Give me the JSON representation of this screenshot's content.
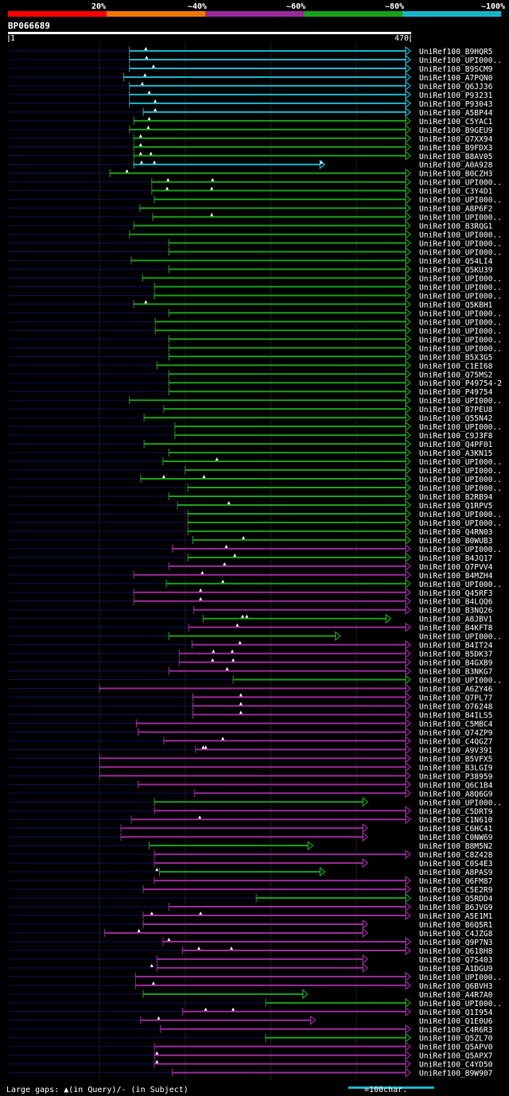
{
  "chart_data": {
    "type": "alignment-map",
    "title": "BP066689",
    "query_range": [
      1,
      470
    ],
    "query_start_label": "1",
    "query_end_label": "470",
    "identity_legend": [
      {
        "label": "20%",
        "color": "#ff0000"
      },
      {
        "label": "~40%",
        "color": "#f07800"
      },
      {
        "label": "~60%",
        "color": "#9a2a9a"
      },
      {
        "label": "~80%",
        "color": "#19a019"
      },
      {
        "label": "~100%",
        "color": "#19b4c8"
      }
    ],
    "footer_left": "Large gaps: ▲(in Query)/- (in Subject)",
    "footer_right": "=100char.",
    "scale_bar_chars": 100,
    "colors": {
      "cyan": "#19b4c8",
      "green": "#19a019",
      "purple": "#9a2a9a",
      "navy": "#0a1450",
      "grid": "#1e1e1e"
    },
    "hits": [
      {
        "name": "UniRef100_B9HQR5",
        "start": 142,
        "end": 470,
        "color": "cyan",
        "gaps": [
          161
        ]
      },
      {
        "name": "UniRef100_UPI000..",
        "start": 142,
        "end": 470,
        "color": "cyan",
        "gaps": [
          162
        ]
      },
      {
        "name": "UniRef100_B9SCM9",
        "start": 142,
        "end": 470,
        "color": "cyan",
        "gaps": [
          170
        ]
      },
      {
        "name": "UniRef100_A7PQN0",
        "start": 135,
        "end": 470,
        "color": "cyan",
        "gaps": [
          160
        ]
      },
      {
        "name": "UniRef100_Q6JJ36",
        "start": 142,
        "end": 470,
        "color": "cyan",
        "gaps": [
          157
        ]
      },
      {
        "name": "UniRef100_P93231",
        "start": 142,
        "end": 470,
        "color": "cyan",
        "gaps": [
          165
        ]
      },
      {
        "name": "UniRef100_P93043",
        "start": 142,
        "end": 470,
        "color": "cyan",
        "gaps": [
          172
        ]
      },
      {
        "name": "UniRef100_A5BP44",
        "start": 158,
        "end": 470,
        "color": "cyan",
        "gaps": [
          172
        ]
      },
      {
        "name": "UniRef100_C5YAC1",
        "start": 147,
        "end": 470,
        "color": "green",
        "gaps": [
          165
        ]
      },
      {
        "name": "UniRef100_B9GEU9",
        "start": 142,
        "end": 470,
        "color": "green",
        "gaps": [
          164
        ]
      },
      {
        "name": "UniRef100_Q7XX94",
        "start": 147,
        "end": 470,
        "color": "green",
        "gaps": [
          155
        ]
      },
      {
        "name": "UniRef100_B9FDX3",
        "start": 147,
        "end": 470,
        "color": "green",
        "gaps": [
          155
        ]
      },
      {
        "name": "UniRef100_B8AV05",
        "start": 147,
        "end": 470,
        "color": "green",
        "gaps": [
          155,
          167
        ]
      },
      {
        "name": "UniRef100_A0A928",
        "start": 147,
        "end": 370,
        "color": "cyan",
        "gaps": [
          156,
          171,
          366
        ]
      },
      {
        "name": "UniRef100_B0CZH3",
        "start": 119,
        "end": 470,
        "color": "green",
        "gaps": [
          139
        ]
      },
      {
        "name": "UniRef100_UPI000..",
        "start": 168,
        "end": 470,
        "color": "green",
        "gaps": [
          187,
          239
        ]
      },
      {
        "name": "UniRef100_C3Y4D1",
        "start": 168,
        "end": 470,
        "color": "green",
        "gaps": [
          186,
          238
        ]
      },
      {
        "name": "UniRef100_UPI000..",
        "start": 171,
        "end": 470,
        "color": "green",
        "gaps": []
      },
      {
        "name": "UniRef100_A8P6F2",
        "start": 154,
        "end": 470,
        "color": "green",
        "gaps": []
      },
      {
        "name": "UniRef100_UPI000..",
        "start": 169,
        "end": 470,
        "color": "green",
        "gaps": [
          238
        ]
      },
      {
        "name": "UniRef100_B3RQG1",
        "start": 147,
        "end": 470,
        "color": "green",
        "gaps": []
      },
      {
        "name": "UniRef100_UPI000..",
        "start": 142,
        "end": 470,
        "color": "green",
        "gaps": []
      },
      {
        "name": "UniRef100_UPI000..",
        "start": 188,
        "end": 470,
        "color": "green",
        "gaps": []
      },
      {
        "name": "UniRef100_UPI000..",
        "start": 188,
        "end": 470,
        "color": "green",
        "gaps": []
      },
      {
        "name": "UniRef100_Q54LI4",
        "start": 144,
        "end": 470,
        "color": "green",
        "gaps": []
      },
      {
        "name": "UniRef100_Q5KU39",
        "start": 188,
        "end": 470,
        "color": "green",
        "gaps": []
      },
      {
        "name": "UniRef100_UPI000..",
        "start": 157,
        "end": 470,
        "color": "green",
        "gaps": []
      },
      {
        "name": "UniRef100_UPI000..",
        "start": 171,
        "end": 470,
        "color": "green",
        "gaps": []
      },
      {
        "name": "UniRef100_UPI000..",
        "start": 171,
        "end": 470,
        "color": "green",
        "gaps": []
      },
      {
        "name": "UniRef100_Q5KBH1",
        "start": 147,
        "end": 470,
        "color": "green",
        "gaps": [
          161
        ]
      },
      {
        "name": "UniRef100_UPI000..",
        "start": 188,
        "end": 470,
        "color": "green",
        "gaps": []
      },
      {
        "name": "UniRef100_UPI000..",
        "start": 172,
        "end": 470,
        "color": "green",
        "gaps": []
      },
      {
        "name": "UniRef100_UPI000..",
        "start": 172,
        "end": 470,
        "color": "green",
        "gaps": []
      },
      {
        "name": "UniRef100_UPI000..",
        "start": 188,
        "end": 470,
        "color": "green",
        "gaps": []
      },
      {
        "name": "UniRef100_UPI000..",
        "start": 188,
        "end": 470,
        "color": "green",
        "gaps": []
      },
      {
        "name": "UniRef100_B5X3G5",
        "start": 188,
        "end": 470,
        "color": "green",
        "gaps": []
      },
      {
        "name": "UniRef100_C1EI68",
        "start": 174,
        "end": 470,
        "color": "green",
        "gaps": []
      },
      {
        "name": "UniRef100_Q75MS2",
        "start": 188,
        "end": 470,
        "color": "green",
        "gaps": []
      },
      {
        "name": "UniRef100_P49754-2",
        "start": 188,
        "end": 470,
        "color": "green",
        "gaps": []
      },
      {
        "name": "UniRef100_P49754",
        "start": 188,
        "end": 470,
        "color": "green",
        "gaps": []
      },
      {
        "name": "UniRef100_UPI000..",
        "start": 142,
        "end": 470,
        "color": "green",
        "gaps": []
      },
      {
        "name": "UniRef100_B7PEU8",
        "start": 182,
        "end": 470,
        "color": "green",
        "gaps": []
      },
      {
        "name": "UniRef100_Q55N42",
        "start": 159,
        "end": 470,
        "color": "green",
        "gaps": []
      },
      {
        "name": "UniRef100_UPI000..",
        "start": 195,
        "end": 470,
        "color": "green",
        "gaps": []
      },
      {
        "name": "UniRef100_C9J3F8",
        "start": 195,
        "end": 470,
        "color": "green",
        "gaps": []
      },
      {
        "name": "UniRef100_Q4PF01",
        "start": 159,
        "end": 470,
        "color": "green",
        "gaps": []
      },
      {
        "name": "UniRef100_A3KN15",
        "start": 188,
        "end": 470,
        "color": "green",
        "gaps": []
      },
      {
        "name": "UniRef100_UPI000..",
        "start": 181,
        "end": 470,
        "color": "green",
        "gaps": [
          244
        ]
      },
      {
        "name": "UniRef100_UPI000..",
        "start": 207,
        "end": 470,
        "color": "green",
        "gaps": []
      },
      {
        "name": "UniRef100_UPI000..",
        "start": 155,
        "end": 470,
        "color": "green",
        "gaps": [
          182,
          229
        ]
      },
      {
        "name": "UniRef100_UPI000..",
        "start": 210,
        "end": 470,
        "color": "green",
        "gaps": []
      },
      {
        "name": "UniRef100_B2RB94",
        "start": 188,
        "end": 470,
        "color": "green",
        "gaps": []
      },
      {
        "name": "UniRef100_Q1RPV5",
        "start": 198,
        "end": 470,
        "color": "green",
        "gaps": [
          258
        ]
      },
      {
        "name": "UniRef100_UPI000..",
        "start": 210,
        "end": 470,
        "color": "green",
        "gaps": []
      },
      {
        "name": "UniRef100_UPI000..",
        "start": 210,
        "end": 470,
        "color": "green",
        "gaps": []
      },
      {
        "name": "UniRef100_Q4RN03",
        "start": 210,
        "end": 470,
        "color": "green",
        "gaps": []
      },
      {
        "name": "UniRef100_B0WUB3",
        "start": 216,
        "end": 470,
        "color": "green",
        "gaps": [
          275
        ]
      },
      {
        "name": "UniRef100_UPI000..",
        "start": 192,
        "end": 470,
        "color": "purple",
        "gaps": [
          255
        ]
      },
      {
        "name": "UniRef100_B4JQ17",
        "start": 210,
        "end": 470,
        "color": "green",
        "gaps": [
          265
        ]
      },
      {
        "name": "UniRef100_Q7PVV4",
        "start": 188,
        "end": 470,
        "color": "purple",
        "gaps": [
          253
        ]
      },
      {
        "name": "UniRef100_B4MZH4",
        "start": 147,
        "end": 470,
        "color": "purple",
        "gaps": [
          227
        ]
      },
      {
        "name": "UniRef100_UPI000..",
        "start": 185,
        "end": 470,
        "color": "green",
        "gaps": [
          251
        ]
      },
      {
        "name": "UniRef100_Q45RF3",
        "start": 147,
        "end": 470,
        "color": "purple",
        "gaps": [
          225
        ]
      },
      {
        "name": "UniRef100_B4LQQ6",
        "start": 147,
        "end": 470,
        "color": "purple",
        "gaps": [
          225
        ]
      },
      {
        "name": "UniRef100_B3NQ26",
        "start": 217,
        "end": 470,
        "color": "purple",
        "gaps": []
      },
      {
        "name": "UniRef100_A8JBV1",
        "start": 228,
        "end": 447,
        "color": "green",
        "gaps": [
          274,
          279
        ]
      },
      {
        "name": "UniRef100_B4KFT8",
        "start": 211,
        "end": 470,
        "color": "purple",
        "gaps": [
          268
        ]
      },
      {
        "name": "UniRef100_UPI000..",
        "start": 188,
        "end": 388,
        "color": "green",
        "gaps": []
      },
      {
        "name": "UniRef100_B4IT24",
        "start": 215,
        "end": 470,
        "color": "purple",
        "gaps": [
          271
        ]
      },
      {
        "name": "UniRef100_B5DK37",
        "start": 200,
        "end": 470,
        "color": "purple",
        "gaps": [
          240,
          262
        ]
      },
      {
        "name": "UniRef100_B4GXB9",
        "start": 200,
        "end": 470,
        "color": "purple",
        "gaps": [
          239,
          263
        ]
      },
      {
        "name": "UniRef100_B3NKG7",
        "start": 188,
        "end": 470,
        "color": "purple",
        "gaps": [
          256
        ]
      },
      {
        "name": "UniRef100_UPI000..",
        "start": 263,
        "end": 470,
        "color": "green",
        "gaps": []
      },
      {
        "name": "UniRef100_A6ZY46",
        "start": 107,
        "end": 470,
        "color": "purple",
        "gaps": []
      },
      {
        "name": "UniRef100_Q7PL77",
        "start": 216,
        "end": 470,
        "color": "purple",
        "gaps": [
          272
        ]
      },
      {
        "name": "UniRef100_O76248",
        "start": 216,
        "end": 470,
        "color": "purple",
        "gaps": [
          272
        ]
      },
      {
        "name": "UniRef100_B4ILS5",
        "start": 216,
        "end": 470,
        "color": "purple",
        "gaps": [
          272
        ]
      },
      {
        "name": "UniRef100_C5MBC4",
        "start": 150,
        "end": 470,
        "color": "purple",
        "gaps": []
      },
      {
        "name": "UniRef100_Q74ZP9",
        "start": 152,
        "end": 470,
        "color": "purple",
        "gaps": []
      },
      {
        "name": "UniRef100_C4QGZ7",
        "start": 182,
        "end": 470,
        "color": "purple",
        "gaps": [
          251
        ]
      },
      {
        "name": "UniRef100_A9V391",
        "start": 219,
        "end": 470,
        "color": "purple",
        "gaps": [
          228,
          231
        ]
      },
      {
        "name": "UniRef100_B5VFX5",
        "start": 107,
        "end": 470,
        "color": "purple",
        "gaps": []
      },
      {
        "name": "UniRef100_B3LGI9",
        "start": 107,
        "end": 470,
        "color": "purple",
        "gaps": []
      },
      {
        "name": "UniRef100_P38959",
        "start": 107,
        "end": 470,
        "color": "purple",
        "gaps": []
      },
      {
        "name": "UniRef100_Q6C1B4",
        "start": 152,
        "end": 470,
        "color": "purple",
        "gaps": []
      },
      {
        "name": "UniRef100_A8Q6G9",
        "start": 218,
        "end": 470,
        "color": "purple",
        "gaps": []
      },
      {
        "name": "UniRef100_UPI000..",
        "start": 171,
        "end": 420,
        "color": "green",
        "gaps": []
      },
      {
        "name": "UniRef100_C5DRT9",
        "start": 171,
        "end": 470,
        "color": "purple",
        "gaps": []
      },
      {
        "name": "UniRef100_C1N610",
        "start": 144,
        "end": 470,
        "color": "purple",
        "gaps": [
          224
        ]
      },
      {
        "name": "UniRef100_C6HC41",
        "start": 132,
        "end": 420,
        "color": "purple",
        "gaps": []
      },
      {
        "name": "UniRef100_C0NW69",
        "start": 132,
        "end": 420,
        "color": "purple",
        "gaps": []
      },
      {
        "name": "UniRef100_B8M5N2",
        "start": 165,
        "end": 356,
        "color": "green",
        "gaps": []
      },
      {
        "name": "UniRef100_C8Z428",
        "start": 171,
        "end": 470,
        "color": "purple",
        "gaps": []
      },
      {
        "name": "UniRef100_C0S4E3",
        "start": 171,
        "end": 420,
        "color": "purple",
        "gaps": []
      },
      {
        "name": "UniRef100_A8PAS9",
        "start": 177,
        "end": 370,
        "color": "green",
        "gaps": [
          174
        ]
      },
      {
        "name": "UniRef100_Q6FM87",
        "start": 171,
        "end": 470,
        "color": "purple",
        "gaps": []
      },
      {
        "name": "UniRef100_C5E2R9",
        "start": 158,
        "end": 470,
        "color": "purple",
        "gaps": []
      },
      {
        "name": "UniRef100_Q5RDD4",
        "start": 290,
        "end": 470,
        "color": "green",
        "gaps": []
      },
      {
        "name": "UniRef100_B6JVG9",
        "start": 188,
        "end": 470,
        "color": "purple",
        "gaps": []
      },
      {
        "name": "UniRef100_A5E1M1",
        "start": 158,
        "end": 470,
        "color": "purple",
        "gaps": [
          168,
          225
        ]
      },
      {
        "name": "UniRef100_B6Q5R1",
        "start": 158,
        "end": 420,
        "color": "purple",
        "gaps": []
      },
      {
        "name": "UniRef100_C4JZG8",
        "start": 113,
        "end": 420,
        "color": "purple",
        "gaps": [
          153
        ]
      },
      {
        "name": "UniRef100_Q9P7N3",
        "start": 181,
        "end": 470,
        "color": "purple",
        "gaps": [
          188
        ]
      },
      {
        "name": "UniRef100_Q618H8",
        "start": 204,
        "end": 470,
        "color": "purple",
        "gaps": [
          223,
          261
        ]
      },
      {
        "name": "UniRef100_Q7S403",
        "start": 174,
        "end": 420,
        "color": "purple",
        "gaps": []
      },
      {
        "name": "UniRef100_A1DGU9",
        "start": 174,
        "end": 420,
        "color": "purple",
        "gaps": [
          168
        ]
      },
      {
        "name": "UniRef100_UPI000..",
        "start": 149,
        "end": 470,
        "color": "purple",
        "gaps": []
      },
      {
        "name": "UniRef100_Q6BVH3",
        "start": 149,
        "end": 470,
        "color": "purple",
        "gaps": [
          170
        ]
      },
      {
        "name": "UniRef100_A4R7A0",
        "start": 158,
        "end": 350,
        "color": "green",
        "gaps": []
      },
      {
        "name": "UniRef100_UPI000..",
        "start": 301,
        "end": 470,
        "color": "green",
        "gaps": []
      },
      {
        "name": "UniRef100_Q1I954",
        "start": 204,
        "end": 470,
        "color": "purple",
        "gaps": [
          231,
          263
        ]
      },
      {
        "name": "UniRef100_Q1E0U6",
        "start": 155,
        "end": 359,
        "color": "purple",
        "gaps": [
          176
        ]
      },
      {
        "name": "UniRef100_C4R6R3",
        "start": 178,
        "end": 470,
        "color": "purple",
        "gaps": []
      },
      {
        "name": "UniRef100_Q5ZL70",
        "start": 301,
        "end": 470,
        "color": "green",
        "gaps": []
      },
      {
        "name": "UniRef100_Q5APV0",
        "start": 171,
        "end": 470,
        "color": "purple",
        "gaps": []
      },
      {
        "name": "UniRef100_Q5APX7",
        "start": 171,
        "end": 470,
        "color": "purple",
        "gaps": [
          174
        ]
      },
      {
        "name": "UniRef100_C4YD50",
        "start": 171,
        "end": 470,
        "color": "purple",
        "gaps": [
          174
        ]
      },
      {
        "name": "UniRef100_B9W907",
        "start": 192,
        "end": 470,
        "color": "purple",
        "gaps": []
      }
    ]
  }
}
